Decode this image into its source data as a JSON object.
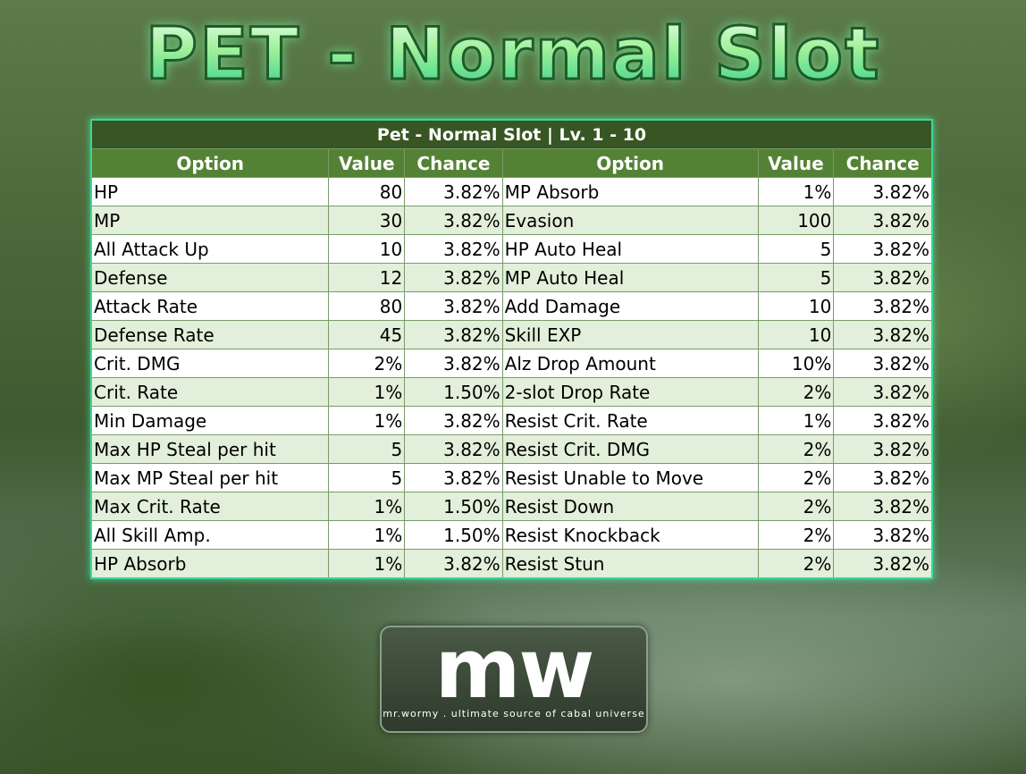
{
  "header": {
    "title": "PET - Normal Slot"
  },
  "table": {
    "caption": "Pet - Normal Slot | Lv. 1 - 10",
    "columns": [
      "Option",
      "Value",
      "Chance",
      "Option",
      "Value",
      "Chance"
    ],
    "rows": [
      [
        "HP",
        "80",
        "3.82%",
        "MP Absorb",
        "1%",
        "3.82%"
      ],
      [
        "MP",
        "30",
        "3.82%",
        "Evasion",
        "100",
        "3.82%"
      ],
      [
        "All Attack Up",
        "10",
        "3.82%",
        "HP Auto Heal",
        "5",
        "3.82%"
      ],
      [
        "Defense",
        "12",
        "3.82%",
        "MP Auto Heal",
        "5",
        "3.82%"
      ],
      [
        "Attack Rate",
        "80",
        "3.82%",
        "Add Damage",
        "10",
        "3.82%"
      ],
      [
        "Defense Rate",
        "45",
        "3.82%",
        "Skill EXP",
        "10",
        "3.82%"
      ],
      [
        "Crit. DMG",
        "2%",
        "3.82%",
        "Alz Drop Amount",
        "10%",
        "3.82%"
      ],
      [
        "Crit. Rate",
        "1%",
        "1.50%",
        "2-slot Drop Rate",
        "2%",
        "3.82%"
      ],
      [
        "Min Damage",
        "1%",
        "3.82%",
        "Resist Crit. Rate",
        "1%",
        "3.82%"
      ],
      [
        "Max HP Steal per hit",
        "5",
        "3.82%",
        "Resist Crit. DMG",
        "2%",
        "3.82%"
      ],
      [
        "Max MP Steal per hit",
        "5",
        "3.82%",
        "Resist Unable to Move",
        "2%",
        "3.82%"
      ],
      [
        "Max Crit. Rate",
        "1%",
        "1.50%",
        "Resist Down",
        "2%",
        "3.82%"
      ],
      [
        "All Skill Amp.",
        "1%",
        "1.50%",
        "Resist Knockback",
        "2%",
        "3.82%"
      ],
      [
        "HP Absorb",
        "1%",
        "3.82%",
        "Resist Stun",
        "2%",
        "3.82%"
      ]
    ]
  },
  "logo": {
    "mark": "mw",
    "tagline": "mr.wormy . ultimate source of cabal universe"
  }
}
